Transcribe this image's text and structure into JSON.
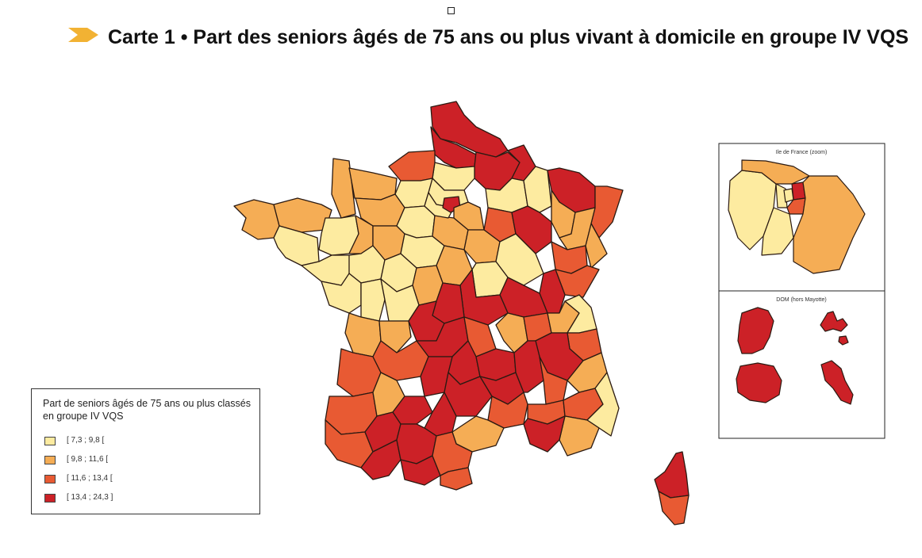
{
  "title": {
    "text": "Carte 1 • Part des seniors âgés de 75 ans ou plus vivant à domicile en groupe IV VQS"
  },
  "legend": {
    "title": "Part de seniors âgés de 75 ans ou plus classés en groupe IV VQS",
    "items": [
      {
        "label": "[ 7,3 ; 9,8 [",
        "color": "#fdeba0"
      },
      {
        "label": "[ 9,8 ; 11,6 [",
        "color": "#f5ad55"
      },
      {
        "label": "[ 11,6 ; 13,4 [",
        "color": "#e85a33"
      },
      {
        "label": "[ 13,4 ; 24,3 ]",
        "color": "#cc2127"
      }
    ]
  },
  "insets": {
    "idf_title": "Ile de France (zoom)",
    "dom_title": "DOM (hors Mayotte)"
  },
  "colors": {
    "class1": "#fdeba0",
    "class2": "#f5ad55",
    "class3": "#e85a33",
    "class4": "#cc2127",
    "border": "#2b1a12",
    "arrow": "#f2b233"
  }
}
